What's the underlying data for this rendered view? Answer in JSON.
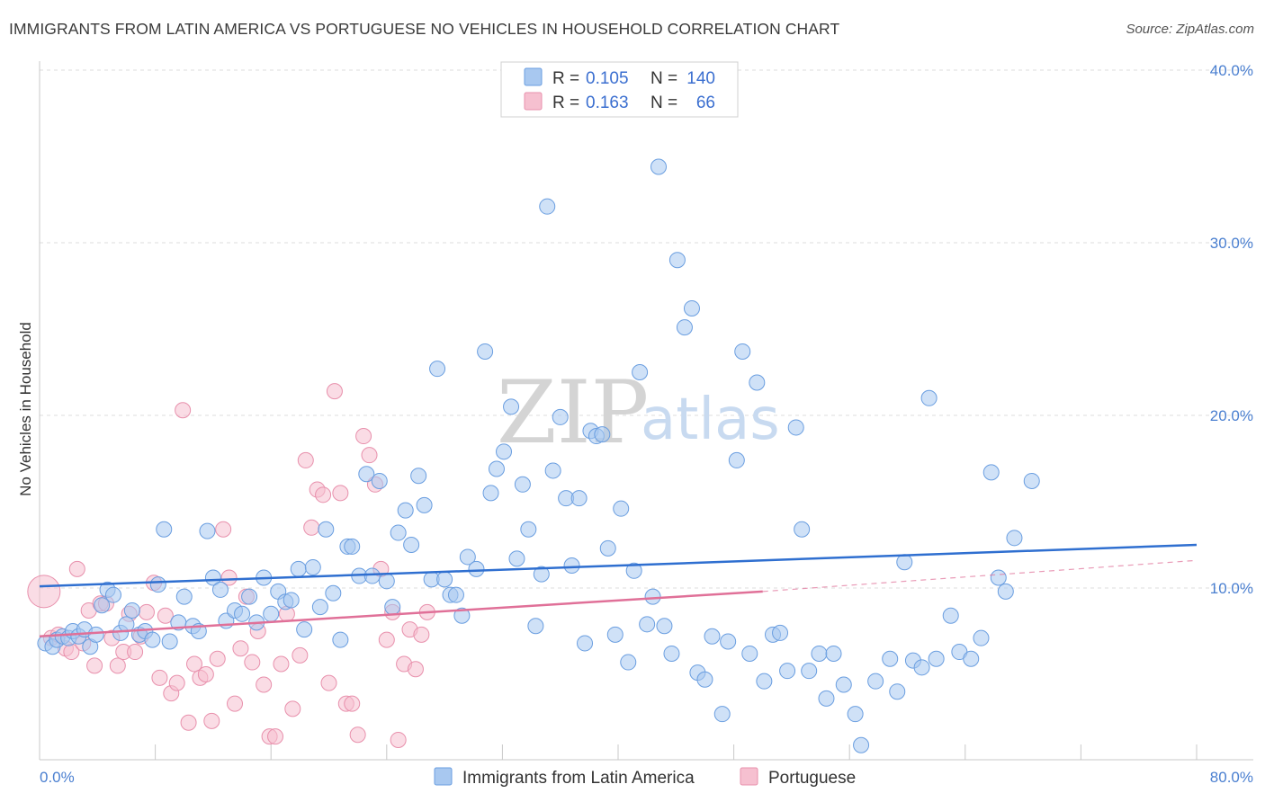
{
  "header": {
    "title": "IMMIGRANTS FROM LATIN AMERICA VS PORTUGUESE NO VEHICLES IN HOUSEHOLD CORRELATION CHART",
    "source": "Source: ZipAtlas.com"
  },
  "watermark": {
    "zip": "ZIP",
    "atlas": "atlas"
  },
  "legend": {
    "items": [
      {
        "r_label": "R =",
        "r_value": "0.105",
        "n_label": "N =",
        "n_value": "140",
        "color": "#7aaae8"
      },
      {
        "r_label": "R =",
        "r_value": "0.163",
        "n_label": "N =",
        "n_value": "66",
        "color": "#f0a0bc"
      }
    ]
  },
  "colors": {
    "blue_fill": "#a8c8f0",
    "blue_stroke": "#6a9ee0",
    "blue_line": "#2f6fd0",
    "pink_fill": "#f6c0d0",
    "pink_stroke": "#e890ac",
    "pink_line": "#e07098",
    "grid": "#dddddd",
    "tick_text": "#4a7fd0"
  },
  "chart_data": {
    "type": "scatter",
    "title": "IMMIGRANTS FROM LATIN AMERICA VS PORTUGUESE NO VEHICLES IN HOUSEHOLD CORRELATION CHART",
    "xlabel": "",
    "ylabel": "No Vehicles in Household",
    "xlim": [
      0,
      80
    ],
    "ylim": [
      0,
      40
    ],
    "x_ticks": [
      "0.0%",
      "80.0%"
    ],
    "y_ticks": [
      {
        "value": 10,
        "label": "10.0%"
      },
      {
        "value": 20,
        "label": "20.0%"
      },
      {
        "value": 30,
        "label": "30.0%"
      },
      {
        "value": 40,
        "label": "40.0%"
      }
    ],
    "grid": true,
    "legend_position": "top-center",
    "series": [
      {
        "name": "Immigrants from Latin America",
        "trend": {
          "x": [
            0,
            80
          ],
          "y": [
            10.1,
            12.5
          ]
        },
        "points": [
          [
            0.4,
            6.8
          ],
          [
            0.9,
            6.6
          ],
          [
            1.2,
            7.0
          ],
          [
            1.6,
            7.2
          ],
          [
            2.0,
            7.1
          ],
          [
            2.3,
            7.5
          ],
          [
            2.7,
            7.2
          ],
          [
            3.1,
            7.6
          ],
          [
            3.5,
            6.6
          ],
          [
            3.9,
            7.3
          ],
          [
            4.3,
            9.0
          ],
          [
            4.7,
            9.9
          ],
          [
            5.1,
            9.6
          ],
          [
            5.6,
            7.4
          ],
          [
            6.0,
            7.9
          ],
          [
            6.4,
            8.7
          ],
          [
            6.9,
            7.3
          ],
          [
            7.3,
            7.5
          ],
          [
            7.8,
            7.0
          ],
          [
            8.2,
            10.2
          ],
          [
            8.6,
            13.4
          ],
          [
            9.0,
            6.9
          ],
          [
            9.6,
            8.0
          ],
          [
            10.0,
            9.5
          ],
          [
            10.6,
            7.8
          ],
          [
            11.0,
            7.5
          ],
          [
            11.6,
            13.3
          ],
          [
            12.0,
            10.6
          ],
          [
            12.5,
            9.9
          ],
          [
            12.9,
            8.1
          ],
          [
            13.5,
            8.7
          ],
          [
            14.0,
            8.5
          ],
          [
            14.5,
            9.5
          ],
          [
            15.0,
            8.0
          ],
          [
            15.5,
            10.6
          ],
          [
            16.0,
            8.5
          ],
          [
            16.5,
            9.8
          ],
          [
            17.0,
            9.2
          ],
          [
            17.4,
            9.3
          ],
          [
            17.9,
            11.1
          ],
          [
            18.3,
            7.6
          ],
          [
            18.9,
            11.2
          ],
          [
            19.4,
            8.9
          ],
          [
            19.8,
            13.4
          ],
          [
            20.3,
            9.7
          ],
          [
            20.8,
            7.0
          ],
          [
            21.3,
            12.4
          ],
          [
            21.6,
            12.4
          ],
          [
            22.1,
            10.7
          ],
          [
            22.6,
            16.6
          ],
          [
            23.0,
            10.7
          ],
          [
            23.5,
            16.2
          ],
          [
            24.0,
            10.4
          ],
          [
            24.4,
            8.9
          ],
          [
            24.8,
            13.2
          ],
          [
            25.3,
            14.5
          ],
          [
            25.7,
            12.5
          ],
          [
            26.2,
            16.5
          ],
          [
            26.6,
            14.8
          ],
          [
            27.1,
            10.5
          ],
          [
            27.5,
            22.7
          ],
          [
            28.0,
            10.5
          ],
          [
            28.4,
            9.6
          ],
          [
            28.8,
            9.6
          ],
          [
            29.2,
            8.4
          ],
          [
            29.6,
            11.8
          ],
          [
            30.2,
            11.1
          ],
          [
            30.8,
            23.7
          ],
          [
            31.2,
            15.5
          ],
          [
            31.6,
            16.9
          ],
          [
            32.1,
            17.9
          ],
          [
            32.6,
            20.5
          ],
          [
            33.0,
            11.7
          ],
          [
            33.4,
            16.0
          ],
          [
            33.8,
            13.4
          ],
          [
            34.3,
            7.8
          ],
          [
            34.7,
            10.8
          ],
          [
            35.1,
            32.1
          ],
          [
            35.5,
            16.8
          ],
          [
            36.0,
            19.9
          ],
          [
            36.4,
            15.2
          ],
          [
            36.8,
            11.3
          ],
          [
            37.3,
            15.2
          ],
          [
            37.7,
            6.8
          ],
          [
            38.1,
            19.1
          ],
          [
            38.5,
            18.8
          ],
          [
            38.9,
            18.9
          ],
          [
            39.3,
            12.3
          ],
          [
            39.8,
            7.3
          ],
          [
            40.2,
            14.6
          ],
          [
            40.7,
            5.7
          ],
          [
            41.1,
            11.0
          ],
          [
            41.5,
            22.5
          ],
          [
            42.0,
            7.9
          ],
          [
            42.4,
            9.5
          ],
          [
            42.8,
            34.4
          ],
          [
            43.2,
            7.8
          ],
          [
            43.7,
            6.2
          ],
          [
            44.1,
            29.0
          ],
          [
            44.6,
            25.1
          ],
          [
            45.1,
            26.2
          ],
          [
            45.5,
            5.1
          ],
          [
            46.0,
            4.7
          ],
          [
            46.5,
            7.2
          ],
          [
            47.2,
            2.7
          ],
          [
            47.6,
            6.9
          ],
          [
            48.2,
            17.4
          ],
          [
            48.6,
            23.7
          ],
          [
            49.1,
            6.2
          ],
          [
            49.6,
            21.9
          ],
          [
            50.1,
            4.6
          ],
          [
            50.7,
            7.3
          ],
          [
            51.2,
            7.4
          ],
          [
            51.7,
            5.2
          ],
          [
            52.3,
            19.3
          ],
          [
            52.7,
            13.4
          ],
          [
            53.2,
            5.2
          ],
          [
            53.9,
            6.2
          ],
          [
            54.4,
            3.6
          ],
          [
            54.9,
            6.2
          ],
          [
            55.6,
            4.4
          ],
          [
            56.4,
            2.7
          ],
          [
            56.8,
            0.9
          ],
          [
            57.8,
            4.6
          ],
          [
            58.8,
            5.9
          ],
          [
            59.3,
            4.0
          ],
          [
            59.8,
            11.5
          ],
          [
            60.4,
            5.8
          ],
          [
            61.0,
            5.4
          ],
          [
            61.5,
            21.0
          ],
          [
            62.0,
            5.9
          ],
          [
            63.0,
            8.4
          ],
          [
            63.6,
            6.3
          ],
          [
            64.4,
            5.9
          ],
          [
            65.1,
            7.1
          ],
          [
            65.8,
            16.7
          ],
          [
            66.3,
            10.6
          ],
          [
            66.8,
            9.8
          ],
          [
            67.4,
            12.9
          ],
          [
            68.6,
            16.2
          ]
        ]
      },
      {
        "name": "Portuguese",
        "trend_solid": {
          "x": [
            0,
            50
          ],
          "y": [
            7.2,
            9.8
          ]
        },
        "trend_dashed": {
          "x": [
            50,
            80
          ],
          "y": [
            9.8,
            11.6
          ]
        },
        "points": [
          [
            0.3,
            9.8
          ],
          [
            0.8,
            7.1
          ],
          [
            1.3,
            7.3
          ],
          [
            1.8,
            6.5
          ],
          [
            2.2,
            6.3
          ],
          [
            2.6,
            11.1
          ],
          [
            3.0,
            6.8
          ],
          [
            3.4,
            8.7
          ],
          [
            3.8,
            5.5
          ],
          [
            4.2,
            9.1
          ],
          [
            4.6,
            9.1
          ],
          [
            5.0,
            7.1
          ],
          [
            5.4,
            5.5
          ],
          [
            5.8,
            6.3
          ],
          [
            6.2,
            8.5
          ],
          [
            6.6,
            6.3
          ],
          [
            7.0,
            7.2
          ],
          [
            7.4,
            8.6
          ],
          [
            7.9,
            10.3
          ],
          [
            8.3,
            4.8
          ],
          [
            8.7,
            8.4
          ],
          [
            9.1,
            3.9
          ],
          [
            9.5,
            4.5
          ],
          [
            9.9,
            20.3
          ],
          [
            10.3,
            2.2
          ],
          [
            10.7,
            5.6
          ],
          [
            11.1,
            4.8
          ],
          [
            11.5,
            5.0
          ],
          [
            11.9,
            2.3
          ],
          [
            12.3,
            5.9
          ],
          [
            12.7,
            13.4
          ],
          [
            13.1,
            10.6
          ],
          [
            13.5,
            3.3
          ],
          [
            13.9,
            6.5
          ],
          [
            14.3,
            9.5
          ],
          [
            14.7,
            5.7
          ],
          [
            15.1,
            7.5
          ],
          [
            15.5,
            4.4
          ],
          [
            15.9,
            1.4
          ],
          [
            16.3,
            1.4
          ],
          [
            16.7,
            5.6
          ],
          [
            17.1,
            8.5
          ],
          [
            17.5,
            3.0
          ],
          [
            18.0,
            6.1
          ],
          [
            18.4,
            17.4
          ],
          [
            18.8,
            13.5
          ],
          [
            19.2,
            15.7
          ],
          [
            19.6,
            15.4
          ],
          [
            20.0,
            4.5
          ],
          [
            20.4,
            21.4
          ],
          [
            20.8,
            15.5
          ],
          [
            21.2,
            3.3
          ],
          [
            21.6,
            3.3
          ],
          [
            22.0,
            1.5
          ],
          [
            22.4,
            18.8
          ],
          [
            22.8,
            17.7
          ],
          [
            23.2,
            16.0
          ],
          [
            23.6,
            11.1
          ],
          [
            24.0,
            7.0
          ],
          [
            24.4,
            8.6
          ],
          [
            24.8,
            1.2
          ],
          [
            25.2,
            5.6
          ],
          [
            25.6,
            7.6
          ],
          [
            26.0,
            5.3
          ],
          [
            26.4,
            7.3
          ],
          [
            26.8,
            8.6
          ]
        ]
      }
    ]
  },
  "bottom_legend": {
    "items": [
      {
        "label": "Immigrants from Latin America"
      },
      {
        "label": "Portuguese"
      }
    ]
  }
}
